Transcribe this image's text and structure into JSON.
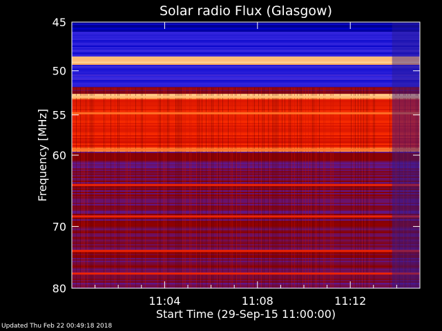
{
  "chart_data": {
    "type": "heatmap",
    "title": "Solar radio Flux (Glasgow)",
    "xlabel": "Start Time (29-Sep-15 11:00:00)",
    "ylabel": "Frequency [MHz]",
    "x_unit": "minutes after 11:00:00",
    "xlim": [
      0,
      15
    ],
    "x_ticks": [
      {
        "value": 4,
        "label": "11:04"
      },
      {
        "value": 8,
        "label": "11:08"
      },
      {
        "value": 12,
        "label": "11:12"
      }
    ],
    "y_scale": "log",
    "ylim": [
      45,
      80
    ],
    "y_ticks": [
      {
        "value": 45,
        "label": "45"
      },
      {
        "value": 50,
        "label": "50"
      },
      {
        "value": 55,
        "label": "55"
      },
      {
        "value": 60,
        "label": "60"
      },
      {
        "value": 70,
        "label": "70"
      },
      {
        "value": 80,
        "label": "80"
      }
    ],
    "colormap": [
      "#00004a",
      "#0000c8",
      "#3a2ae0",
      "#5a1aa0",
      "#8a0000",
      "#d41000",
      "#ff3000",
      "#ff8030",
      "#ffd090"
    ],
    "intensity_regions": [
      {
        "f_min": 45.0,
        "f_max": 46.0,
        "level": 0.1
      },
      {
        "f_min": 46.0,
        "f_max": 48.5,
        "level": 0.2
      },
      {
        "f_min": 48.5,
        "f_max": 49.3,
        "level": 0.95
      },
      {
        "f_min": 49.3,
        "f_max": 51.8,
        "level": 0.22
      },
      {
        "f_min": 51.8,
        "f_max": 52.6,
        "level": 0.5
      },
      {
        "f_min": 52.6,
        "f_max": 53.1,
        "level": 0.95
      },
      {
        "f_min": 53.1,
        "f_max": 59.0,
        "level": 0.68
      },
      {
        "f_min": 59.0,
        "f_max": 59.6,
        "level": 0.9
      },
      {
        "f_min": 59.6,
        "f_max": 80.0,
        "level": 0.45
      }
    ],
    "bright_lines_mhz": [
      48.9,
      52.9,
      54.8,
      59.3,
      64.0,
      68.5,
      73.8,
      77.5
    ],
    "late_segment": {
      "x_start": 13.8,
      "x_end": 15.0,
      "description_level": 0.35
    }
  },
  "footer": {
    "updated": "Updated Thu Feb 22 00:49:18 2018"
  }
}
